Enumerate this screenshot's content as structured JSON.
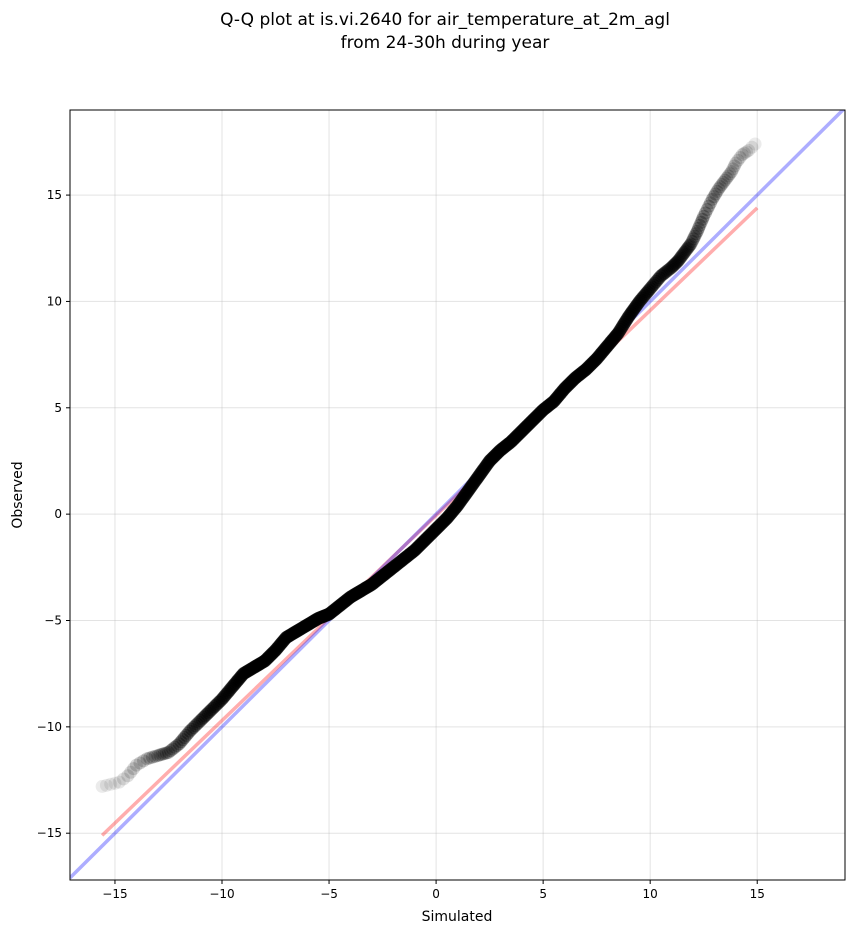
{
  "chart_data": {
    "type": "scatter",
    "title_line1": "Q-Q plot at is.vi.2640 for air_temperature_at_2m_agl",
    "title_line2": "from 24-30h during year",
    "xlabel": "Simulated",
    "ylabel": "Observed",
    "xlim": [
      -17.1,
      19.1
    ],
    "ylim": [
      -17.2,
      19.0
    ],
    "xticks": [
      -15,
      -10,
      -5,
      0,
      5,
      10,
      15
    ],
    "yticks": [
      -15,
      -10,
      -5,
      0,
      5,
      10,
      15
    ],
    "grid": true,
    "series": [
      {
        "kind": "points",
        "color": "#000000",
        "quantiles": [
          [
            -15.6,
            -12.8
          ],
          [
            -15.2,
            -12.7
          ],
          [
            -14.8,
            -12.6
          ],
          [
            -14.4,
            -12.3
          ],
          [
            -14.0,
            -11.8
          ],
          [
            -13.5,
            -11.5
          ],
          [
            -13.0,
            -11.35
          ],
          [
            -12.5,
            -11.2
          ],
          [
            -12.0,
            -10.8
          ],
          [
            -11.5,
            -10.2
          ],
          [
            -11.0,
            -9.7
          ],
          [
            -10.5,
            -9.2
          ],
          [
            -10.0,
            -8.7
          ],
          [
            -9.5,
            -8.1
          ],
          [
            -9.0,
            -7.5
          ],
          [
            -8.5,
            -7.2
          ],
          [
            -8.0,
            -6.9
          ],
          [
            -7.5,
            -6.4
          ],
          [
            -7.0,
            -5.8
          ],
          [
            -6.5,
            -5.5
          ],
          [
            -6.0,
            -5.2
          ],
          [
            -5.5,
            -4.9
          ],
          [
            -5.0,
            -4.7
          ],
          [
            -4.5,
            -4.3
          ],
          [
            -4.0,
            -3.9
          ],
          [
            -3.5,
            -3.6
          ],
          [
            -3.0,
            -3.3
          ],
          [
            -2.5,
            -2.9
          ],
          [
            -2.0,
            -2.5
          ],
          [
            -1.5,
            -2.1
          ],
          [
            -1.0,
            -1.7
          ],
          [
            -0.5,
            -1.2
          ],
          [
            0.0,
            -0.7
          ],
          [
            0.5,
            -0.2
          ],
          [
            1.0,
            0.4
          ],
          [
            1.5,
            1.1
          ],
          [
            2.0,
            1.8
          ],
          [
            2.5,
            2.5
          ],
          [
            3.0,
            3.0
          ],
          [
            3.5,
            3.4
          ],
          [
            4.0,
            3.9
          ],
          [
            4.5,
            4.4
          ],
          [
            5.0,
            4.9
          ],
          [
            5.5,
            5.3
          ],
          [
            6.0,
            5.9
          ],
          [
            6.5,
            6.4
          ],
          [
            7.0,
            6.8
          ],
          [
            7.5,
            7.3
          ],
          [
            8.0,
            7.9
          ],
          [
            8.5,
            8.5
          ],
          [
            9.0,
            9.3
          ],
          [
            9.5,
            10.0
          ],
          [
            10.0,
            10.6
          ],
          [
            10.5,
            11.2
          ],
          [
            11.0,
            11.6
          ],
          [
            11.3,
            11.9
          ],
          [
            11.6,
            12.3
          ],
          [
            11.9,
            12.7
          ],
          [
            12.2,
            13.3
          ],
          [
            12.5,
            14.0
          ],
          [
            12.9,
            14.8
          ],
          [
            13.2,
            15.3
          ],
          [
            13.5,
            15.7
          ],
          [
            13.8,
            16.1
          ],
          [
            14.0,
            16.5
          ],
          [
            14.3,
            16.9
          ],
          [
            14.6,
            17.1
          ],
          [
            14.9,
            17.4
          ]
        ]
      },
      {
        "kind": "line",
        "color": "#ff0000",
        "x": [
          -15.6,
          15.0
        ],
        "y": [
          -15.1,
          14.4
        ]
      },
      {
        "kind": "line",
        "color": "#0000ff",
        "x": [
          -17.1,
          19.1
        ],
        "y": [
          -17.1,
          19.1
        ]
      }
    ]
  }
}
